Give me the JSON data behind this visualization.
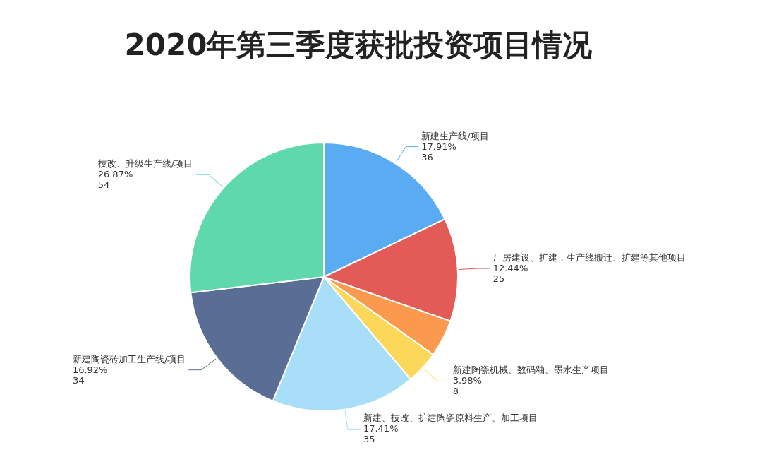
{
  "chart_data": {
    "type": "pie",
    "title": "2020年第三季度获批投资项目情况",
    "categories": [
      "新建生产线/项目",
      "厂房建设、扩建，生产线搬迁、扩建等其他项目",
      null,
      "新建陶瓷机械、数码釉、墨水生产项目",
      "新建、技改、扩建陶瓷原料生产、加工项目",
      "新建陶瓷砖加工生产线/项目",
      "技改、升级生产线/项目"
    ],
    "values": [
      36,
      25,
      9,
      8,
      35,
      34,
      54
    ],
    "value_labels": [
      "17.91%\n36",
      "12.44%\n25",
      null,
      "3.98%\n8",
      "17.41%\n35",
      "16.92%\n34",
      "26.87%\n54"
    ],
    "colors": [
      "#5aacf2",
      "#e35b57",
      "#fb9a4f",
      "#fcd85a",
      "#a9def8",
      "#5a6d94",
      "#5fd8ac"
    ]
  }
}
